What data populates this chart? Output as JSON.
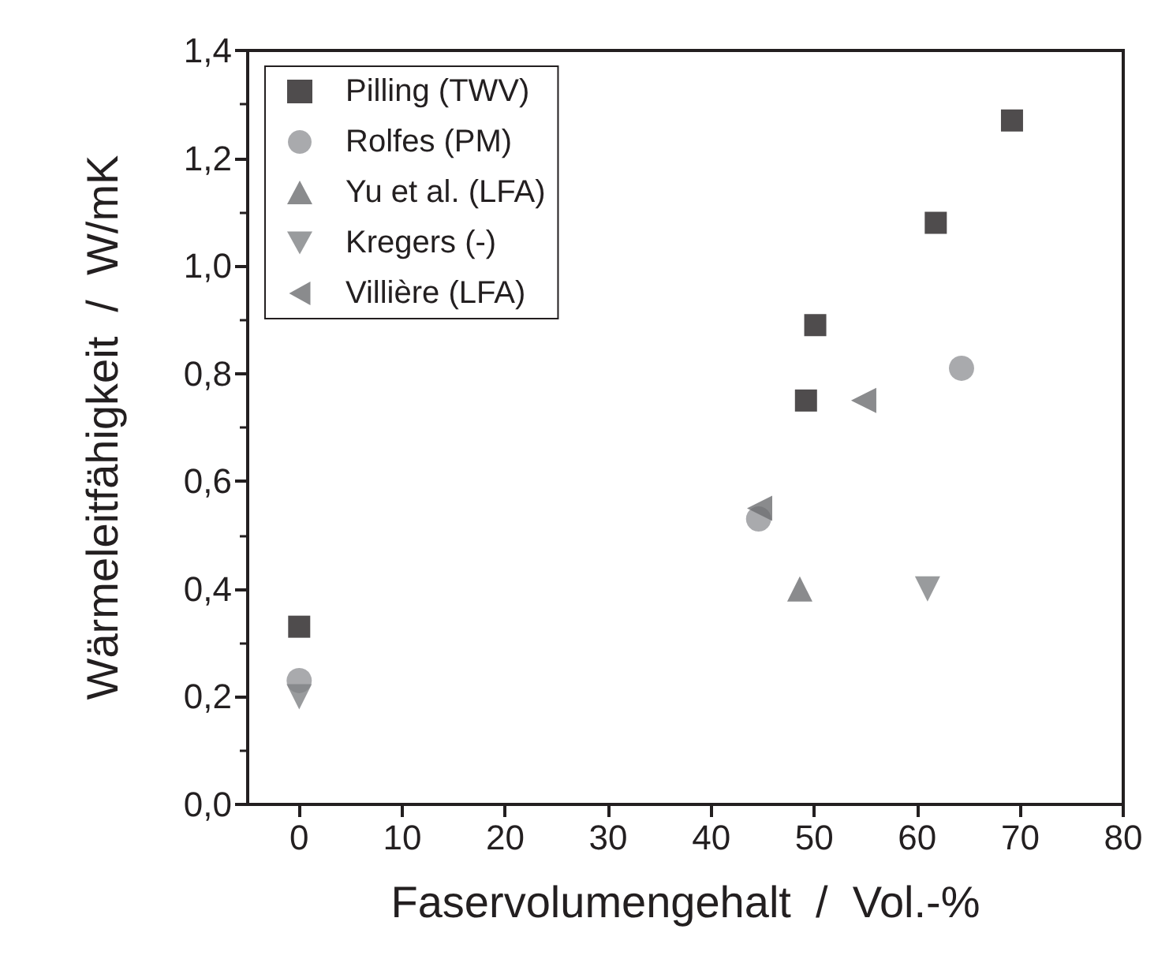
{
  "chart_data": {
    "type": "scatter",
    "xlabel": "Faservolumengehalt  /  Vol.-%",
    "ylabel": "Wärmeleitfähigkeit  /  W/mK",
    "xlim": [
      -5,
      80
    ],
    "xticks": [
      0,
      10,
      20,
      30,
      40,
      50,
      60,
      70,
      80
    ],
    "ylim": [
      0,
      1.4
    ],
    "yticks": [
      {
        "value": 0,
        "label": "0,0"
      },
      {
        "value": 0.2,
        "label": "0,2"
      },
      {
        "value": 0.4,
        "label": "0,4"
      },
      {
        "value": 0.6,
        "label": "0,6"
      },
      {
        "value": 0.8,
        "label": "0,8"
      },
      {
        "value": 1.0,
        "label": "1,0"
      },
      {
        "value": 1.2,
        "label": "1,2"
      },
      {
        "value": 1.4,
        "label": "1,4"
      }
    ],
    "grid": false,
    "legend": "top left",
    "series": [
      {
        "name": "Pilling (TWV)",
        "color": "#231f20",
        "marker": "square",
        "x": [
          0,
          49.2,
          50.1,
          61.8,
          69.2
        ],
        "values": [
          0.33,
          0.75,
          0.89,
          1.08,
          1.27
        ]
      },
      {
        "name": "Rolfes (PM)",
        "color": "#939598",
        "marker": "circle",
        "x": [
          0,
          44.6,
          64.3
        ],
        "values": [
          0.23,
          0.53,
          0.81
        ]
      },
      {
        "name": "Yu et al. (LFA)",
        "color": "#6d6e71",
        "marker": "triangle",
        "x": [
          48.6
        ],
        "values": [
          0.4
        ]
      },
      {
        "name": "Kregers (-)",
        "color": "#808285",
        "marker": "triangle-down",
        "x": [
          0,
          61.0
        ],
        "values": [
          0.2,
          0.4
        ]
      },
      {
        "name": "Villière (LFA)",
        "color": "#6d6e71",
        "marker": "triangle-left",
        "x": [
          44.7,
          54.8
        ],
        "values": [
          0.55,
          0.75
        ]
      }
    ]
  }
}
